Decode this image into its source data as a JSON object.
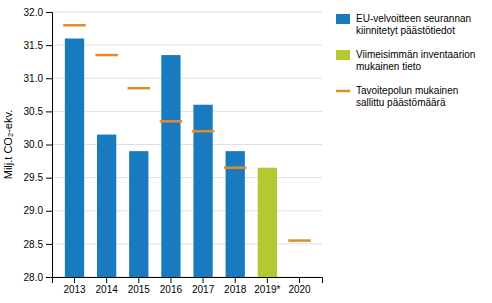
{
  "chart_data": {
    "type": "bar",
    "categories": [
      "2013",
      "2014",
      "2015",
      "2016",
      "2017",
      "2018",
      "2019*",
      "2020"
    ],
    "series": [
      {
        "name": "EU-velvoitteen seurannan\nkiinnitetyt päästötiedot",
        "type": "bar",
        "color": "#1a7abf",
        "values": [
          31.6,
          30.15,
          29.9,
          31.35,
          30.6,
          29.9,
          null,
          null
        ]
      },
      {
        "name": "Viimeisimmän inventaarion\nmukainen tieto",
        "type": "bar",
        "color": "#b5c832",
        "values": [
          null,
          null,
          null,
          null,
          null,
          null,
          29.65,
          null
        ]
      },
      {
        "name": "Tavoitepolun mukainen\nsallittu päästömäärä",
        "type": "scatter",
        "marker": "hline",
        "color": "#e8882a",
        "values": [
          31.8,
          31.35,
          30.85,
          30.35,
          30.2,
          29.65,
          null,
          28.55
        ]
      }
    ],
    "ylim": [
      28.0,
      32.0
    ],
    "yticks": [
      {
        "value": 28.0,
        "label": "28.0"
      },
      28.5,
      {
        "value": 29.0,
        "label": "29.0"
      },
      29.5,
      {
        "value": 30.0,
        "label": "30.0"
      },
      30.5,
      {
        "value": 31.0,
        "label": "31.0"
      },
      31.5,
      {
        "value": 32.0,
        "label": "32.0"
      }
    ],
    "ylabel": "Milj.t CO₂-ekv.",
    "grid": true,
    "legend": "right"
  }
}
